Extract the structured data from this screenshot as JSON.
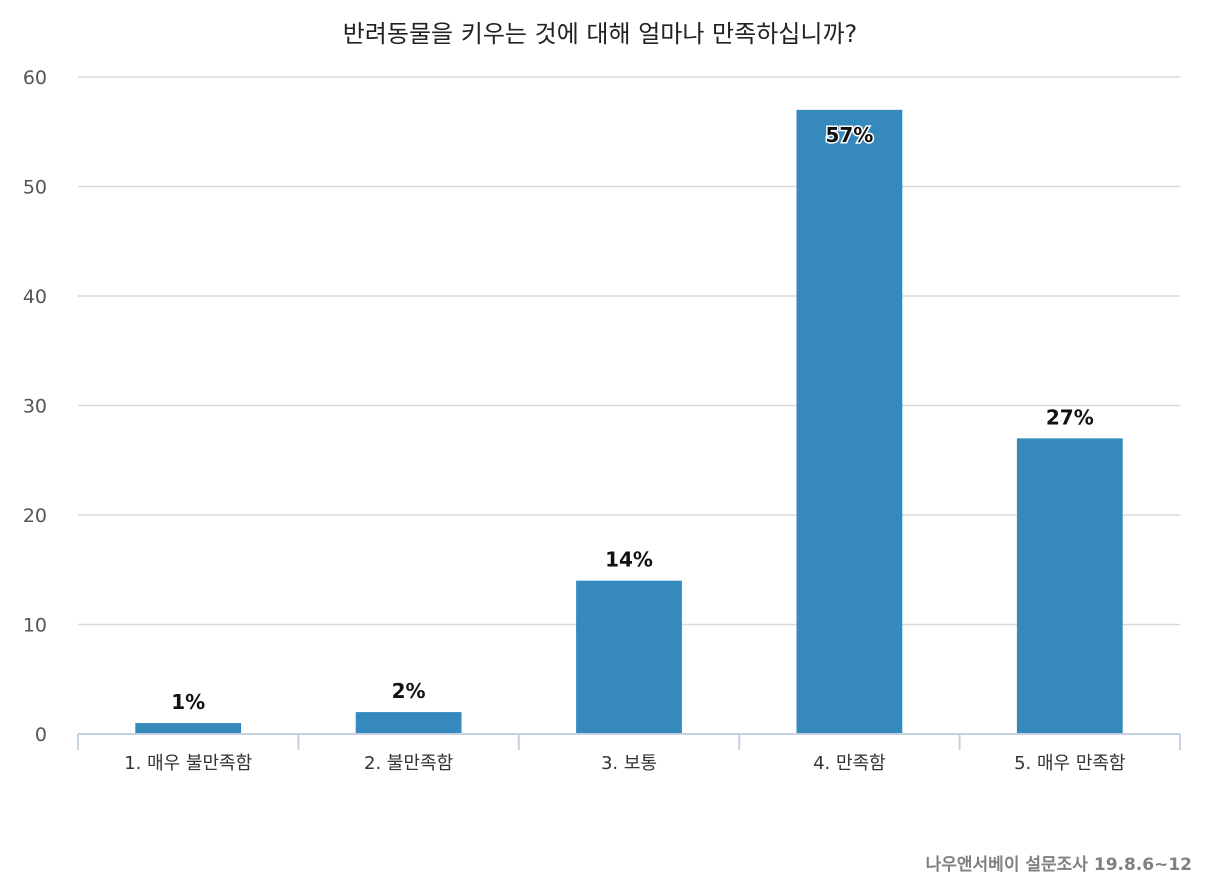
{
  "chart_data": {
    "type": "bar",
    "title": "반려동물을 키우는 것에 대해 얼마나 만족하십니까?",
    "categories": [
      "1. 매우 불만족함",
      "2. 불만족함",
      "3. 보통",
      "4. 만족함",
      "5. 매우 만족함"
    ],
    "values": [
      1,
      2,
      14,
      57,
      27
    ],
    "data_labels": [
      "1%",
      "2%",
      "14%",
      "57%",
      "27%"
    ],
    "ylim": [
      0,
      60
    ],
    "yticks": [
      0,
      10,
      20,
      30,
      40,
      50,
      60
    ],
    "grid": true,
    "legend": "none",
    "bar_color": "#3589bd",
    "grid_color": "#d9d9d9",
    "axis_color": "#c3d1e0"
  },
  "source_note": "나우앤서베이 설문조사 19.8.6~12"
}
